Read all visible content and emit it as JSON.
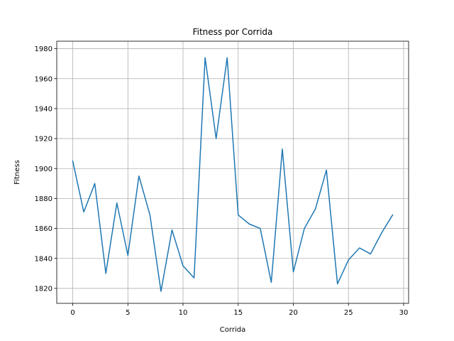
{
  "chart_data": {
    "type": "line",
    "title": "Fitness por Corrida",
    "xlabel": "Corrida",
    "ylabel": "Fitness",
    "xlim": [
      -1.45,
      30.45
    ],
    "ylim": [
      1810,
      1985
    ],
    "xticks": [
      0,
      5,
      10,
      15,
      20,
      25,
      30
    ],
    "yticks": [
      1820,
      1840,
      1860,
      1880,
      1900,
      1920,
      1940,
      1960,
      1980
    ],
    "grid": true,
    "line_color": "#1f77b4",
    "series": [
      {
        "x": [
          0,
          1,
          2,
          3,
          4,
          5,
          6,
          7,
          8,
          9,
          10,
          11,
          12,
          13,
          14,
          15,
          16,
          17,
          18,
          19,
          20,
          21,
          22,
          23,
          24,
          25,
          26,
          27,
          28,
          29
        ],
        "values": [
          1905,
          1871,
          1890,
          1830,
          1877,
          1842,
          1895,
          1869,
          1818,
          1859,
          1835,
          1827,
          1974,
          1920,
          1974,
          1869,
          1863,
          1860,
          1824,
          1913,
          1831,
          1860,
          1873,
          1899,
          1823,
          1839,
          1847,
          1843,
          1857,
          1869
        ]
      }
    ]
  }
}
